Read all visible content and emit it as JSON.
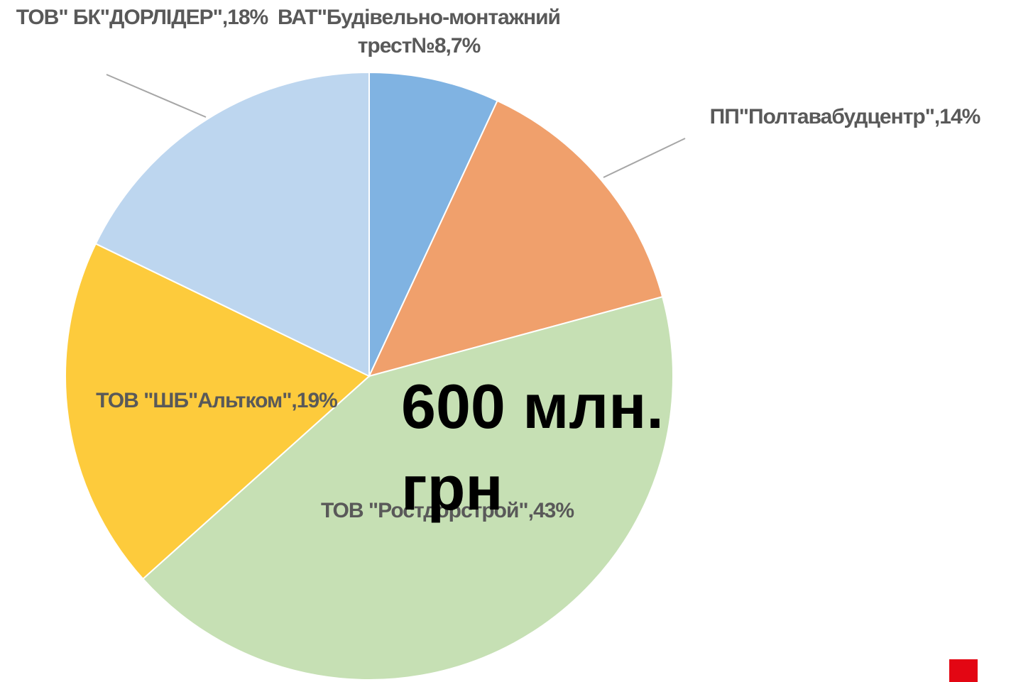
{
  "chart_data": {
    "type": "pie",
    "labels": [
      "ВАТ\"Будівельно-монтажний трест№8,7%",
      "ПП\"Полтавабудцентр\",14%",
      "ТОВ \"Ростдорстрой\",43%",
      "ТОВ \"ШБ\"Альтком\",19%",
      "ТОВ\" БК\"ДОРЛІДЕР\",18%"
    ],
    "values": [
      7,
      14,
      43,
      19,
      18
    ],
    "colors": [
      "#80b3e2",
      "#f0a06c",
      "#c6e0b4",
      "#fdcb3c",
      "#bdd6ef"
    ],
    "annotation": "600 млн. грн"
  }
}
